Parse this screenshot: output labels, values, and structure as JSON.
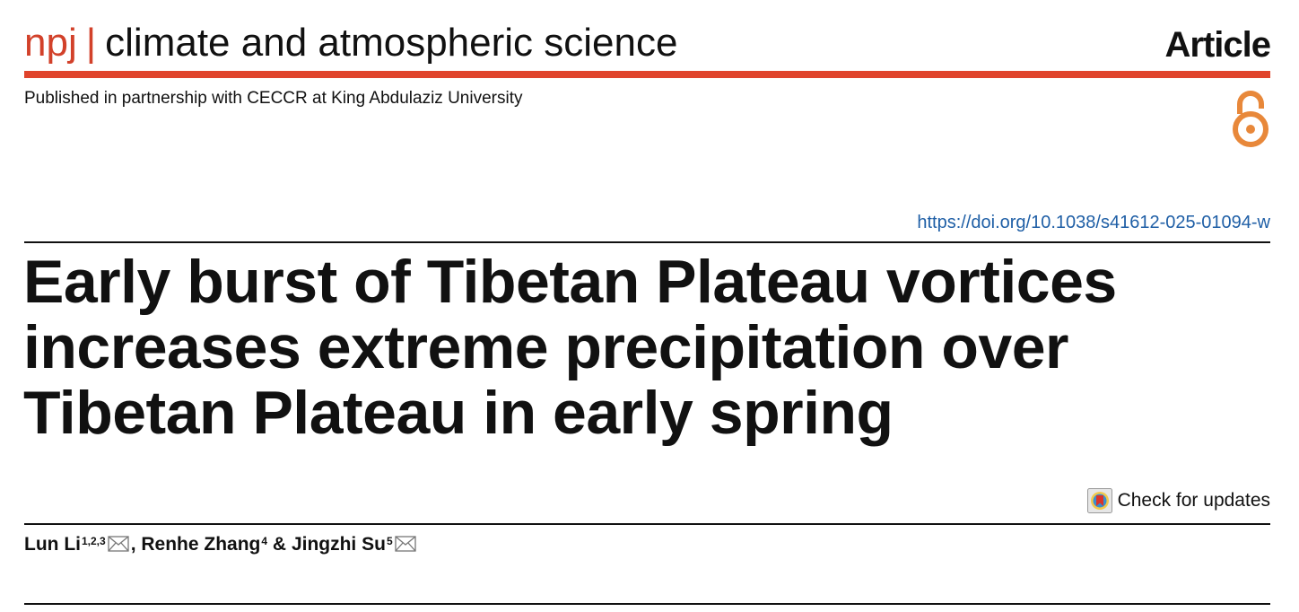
{
  "header": {
    "journal_brand": "npj",
    "journal_separator": "|",
    "journal_name": "climate and atmospheric science",
    "article_type": "Article",
    "partner_line": "Published in partnership with CECCR at King Abdulaziz University"
  },
  "doi": {
    "url": "https://doi.org/10.1038/s41612-025-01094-w"
  },
  "title": "Early burst of Tibetan Plateau vortices increases extreme precipitation over Tibetan Plateau in early spring",
  "check_updates": {
    "label": "Check for updates"
  },
  "authors": [
    {
      "name": "Lun Li",
      "affiliations": "1,2,3",
      "corresponding": true
    },
    {
      "name": "Renhe Zhang",
      "affiliations": "4",
      "corresponding": false
    },
    {
      "name": "Jingzhi Su",
      "affiliations": "5",
      "corresponding": true
    }
  ],
  "author_separators": [
    ",",
    "&"
  ],
  "colors": {
    "brand_red": "#d2412a",
    "rule_red": "#e0442c",
    "open_access_orange": "#e8883a",
    "doi_blue": "#1f5fa6"
  },
  "icons": {
    "open_access": "open-access-lock-icon",
    "check_updates": "crossmark-icon",
    "email": "envelope-icon"
  }
}
